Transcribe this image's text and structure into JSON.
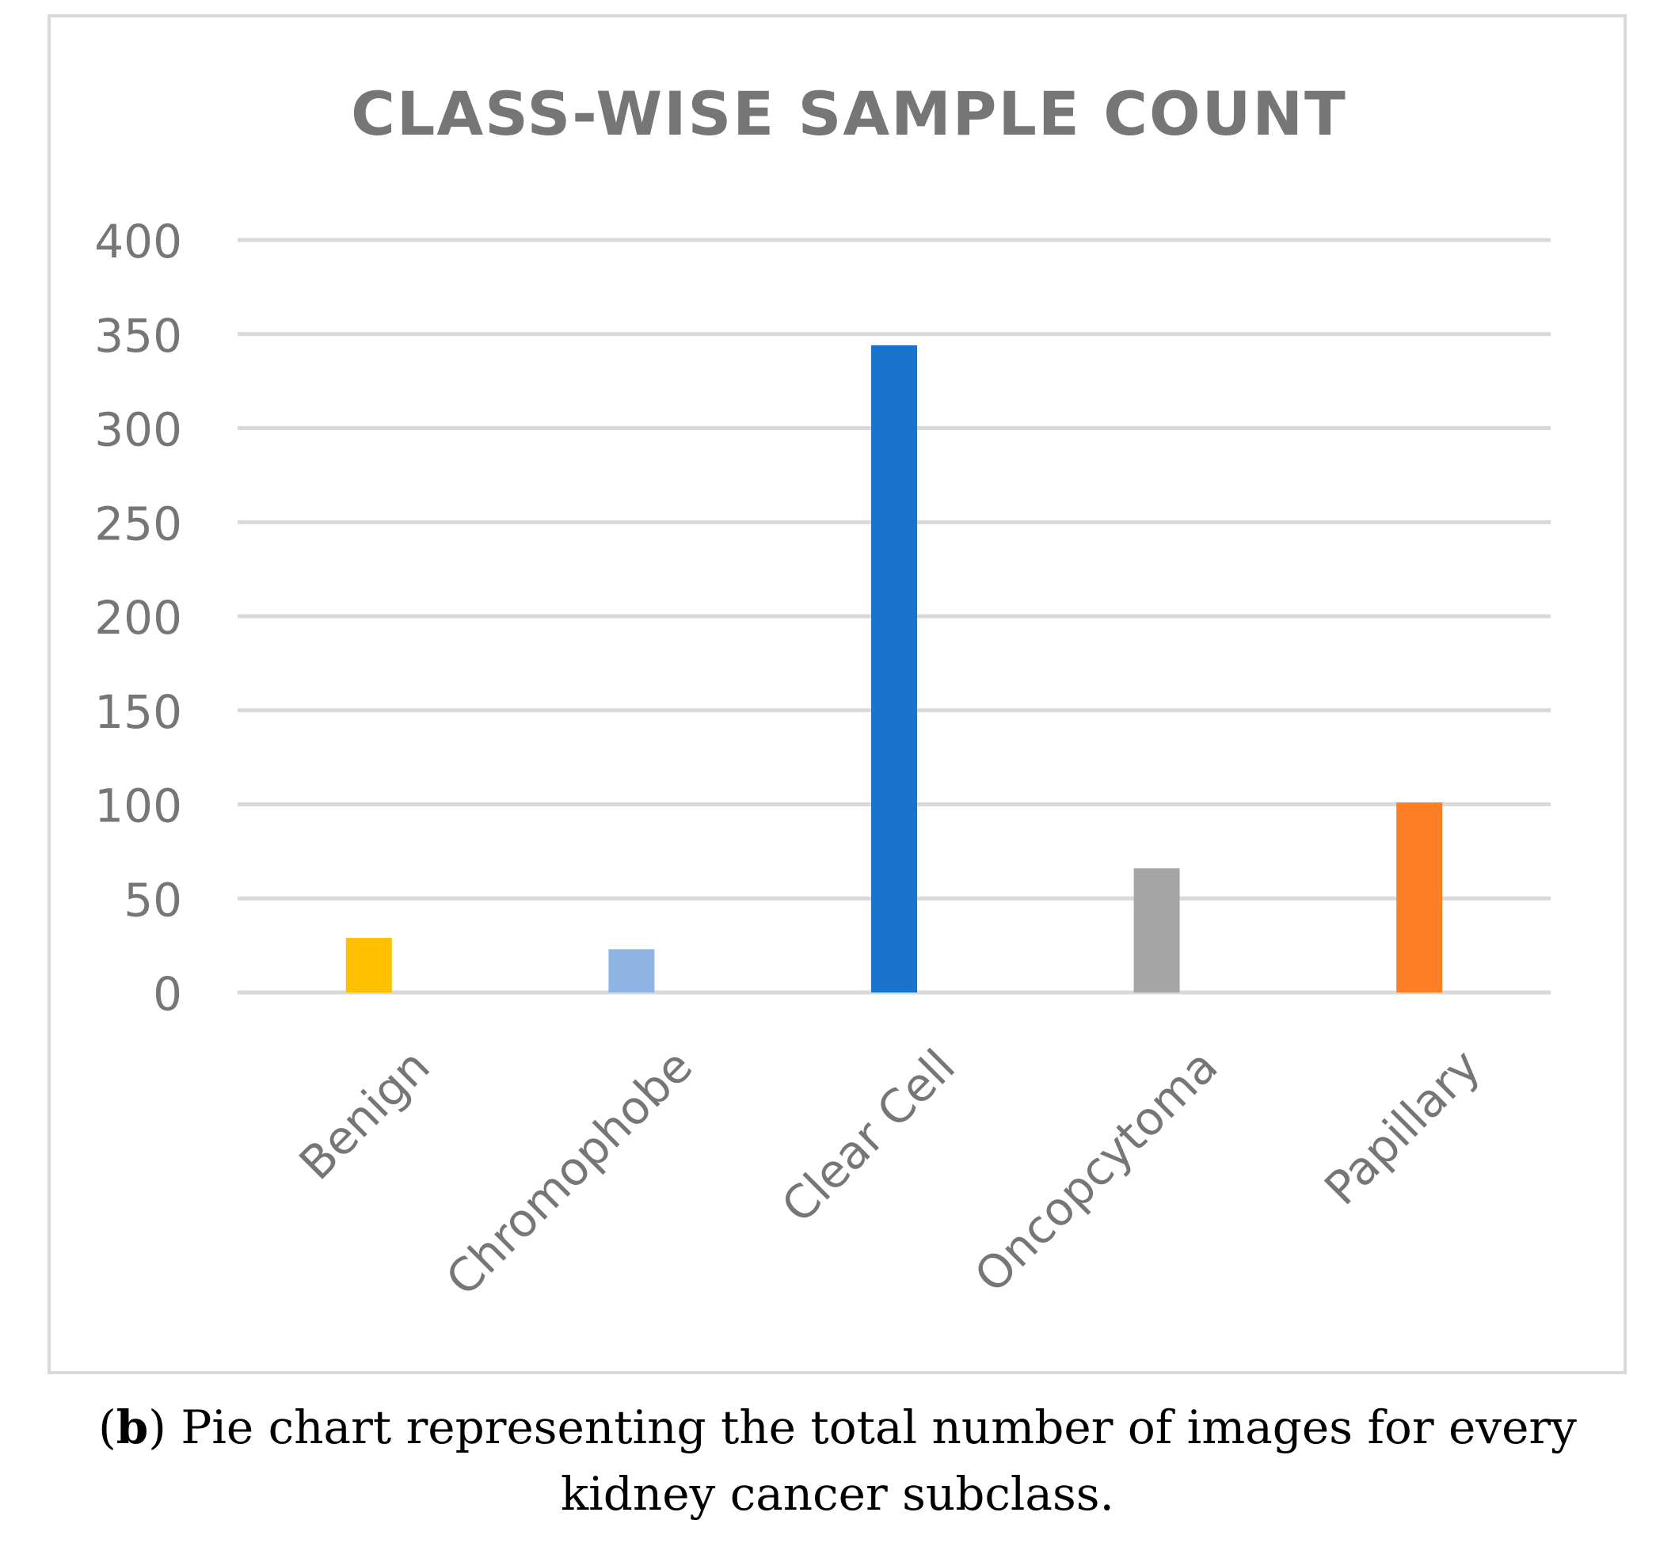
{
  "chart_data": {
    "type": "bar",
    "title": "CLASS-WISE SAMPLE COUNT",
    "categories": [
      "Benign",
      "Chromophobe",
      "Clear Cell",
      "Oncopcytoma",
      "Papillary"
    ],
    "values": [
      29,
      23,
      344,
      66,
      101
    ],
    "colors": [
      "#ffc000",
      "#8eb4e3",
      "#1874cd",
      "#a5a5a5",
      "#ff7f27"
    ],
    "yticks": [
      "0",
      "50",
      "100",
      "150",
      "200",
      "250",
      "300",
      "350",
      "400"
    ],
    "ylim": [
      0,
      400
    ],
    "xlabel": "",
    "ylabel": "",
    "grid": true,
    "legend": "none"
  },
  "caption": {
    "label": "b",
    "line1": " Pie chart representing the total number of images for every",
    "line2": "kidney cancer subclass."
  }
}
